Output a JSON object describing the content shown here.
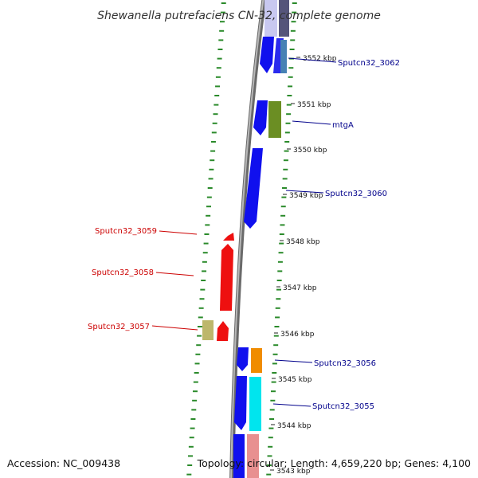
{
  "title": "Shewanella putrefaciens CN-32, complete genome",
  "accession_text": "Accession: NC_009438",
  "topology_text": "Topology: circular; Length: 4,659,220 bp; Genes: 4,100",
  "colors": {
    "backbone": "#888888",
    "forward_label": "#00008b",
    "reverse_label": "#cc0000",
    "dots": "#2a8a2a",
    "blue": "#1010ee",
    "red": "#ee1010",
    "olive": "#6b8e23",
    "steelblue": "#4682b4",
    "orange": "#f08c00",
    "cyan": "#00e5ee",
    "khaki": "#bdb76b",
    "pink": "#e89090",
    "lavender": "#c8c8f0",
    "slate": "#55557a"
  },
  "kbp_ticks": [
    {
      "label": "3552 kbp",
      "kbp": 3552
    },
    {
      "label": "3551 kbp",
      "kbp": 3551
    },
    {
      "label": "3550 kbp",
      "kbp": 3550
    },
    {
      "label": "3549 kbp",
      "kbp": 3549
    },
    {
      "label": "3548 kbp",
      "kbp": 3548
    },
    {
      "label": "3547 kbp",
      "kbp": 3547
    },
    {
      "label": "3546 kbp",
      "kbp": 3546
    },
    {
      "label": "3545 kbp",
      "kbp": 3545
    },
    {
      "label": "3544 kbp",
      "kbp": 3544
    },
    {
      "label": "3543 kbp",
      "kbp": 3543
    }
  ],
  "gene_labels": [
    {
      "text": "Sputcn32_3062",
      "strand": "forward"
    },
    {
      "text": "mtgA",
      "strand": "forward"
    },
    {
      "text": "Sputcn32_3060",
      "strand": "forward"
    },
    {
      "text": "Sputcn32_3059",
      "strand": "reverse"
    },
    {
      "text": "Sputcn32_3058",
      "strand": "reverse"
    },
    {
      "text": "Sputcn32_3057",
      "strand": "reverse"
    },
    {
      "text": "Sputcn32_3056",
      "strand": "forward"
    },
    {
      "text": "Sputcn32_3055",
      "strand": "forward"
    }
  ]
}
